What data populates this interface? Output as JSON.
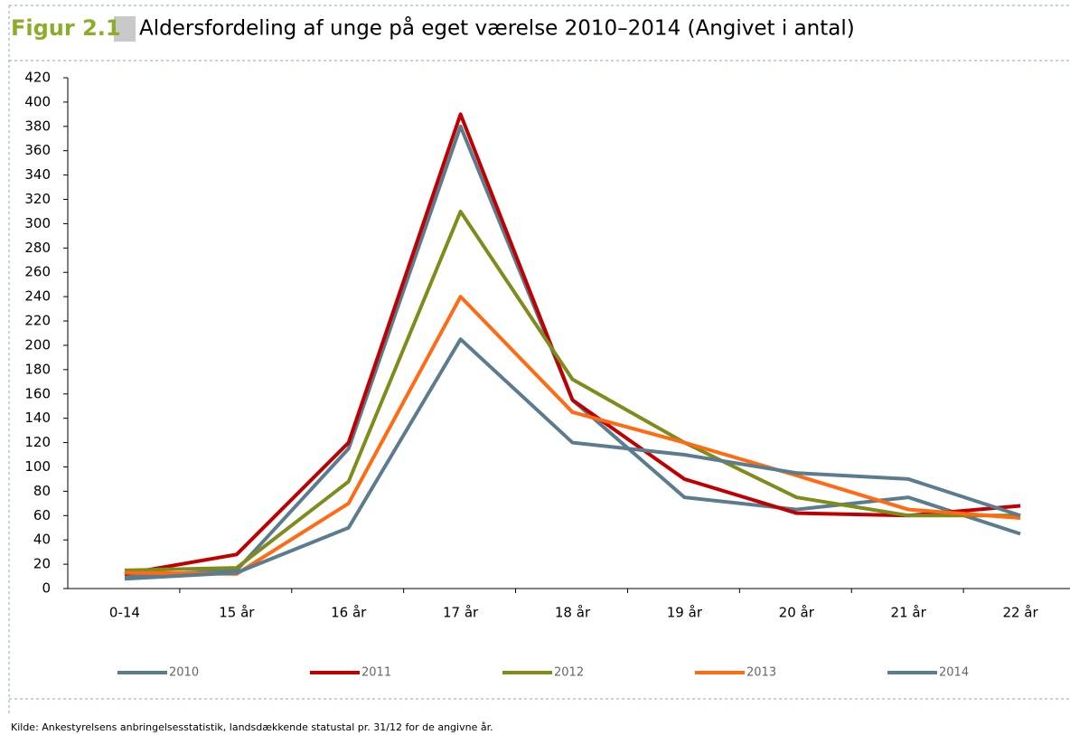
{
  "chart_data": {
    "type": "line",
    "figure_label": "Figur 2.1",
    "title": "Aldersfordeling af unge på eget værelse 2010–2014 (Angivet i antal)",
    "source": "Kilde: Ankestyrelsens anbringelsesstatistik, landsdækkende statustal pr. 31/12 for de angivne år.",
    "categories": [
      "0-14",
      "15 år",
      "16 år",
      "17 år",
      "18 år",
      "19 år",
      "20 år",
      "21 år",
      "22 år"
    ],
    "series": [
      {
        "name": "2010",
        "color": "#5b7b8e",
        "values": [
          10,
          15,
          115,
          380,
          155,
          75,
          65,
          75,
          45
        ]
      },
      {
        "name": "2011",
        "color": "#c00000",
        "values": [
          12,
          28,
          120,
          390,
          155,
          90,
          62,
          60,
          68
        ]
      },
      {
        "name": "2012",
        "color": "#7f8c1c",
        "values": [
          15,
          17,
          88,
          310,
          172,
          120,
          75,
          60,
          60
        ]
      },
      {
        "name": "2013",
        "color": "#ff6a13",
        "values": [
          13,
          12,
          70,
          240,
          145,
          120,
          93,
          65,
          58
        ]
      },
      {
        "name": "2014",
        "color": "#5b7b8e",
        "values": [
          8,
          13,
          50,
          205,
          120,
          110,
          95,
          90,
          60
        ]
      }
    ],
    "ylim": [
      0,
      420
    ],
    "yticks": [
      0,
      20,
      40,
      60,
      80,
      100,
      120,
      140,
      160,
      180,
      200,
      220,
      240,
      260,
      280,
      300,
      320,
      340,
      360,
      380,
      400,
      420
    ],
    "grid": false,
    "legend": "bottom"
  }
}
